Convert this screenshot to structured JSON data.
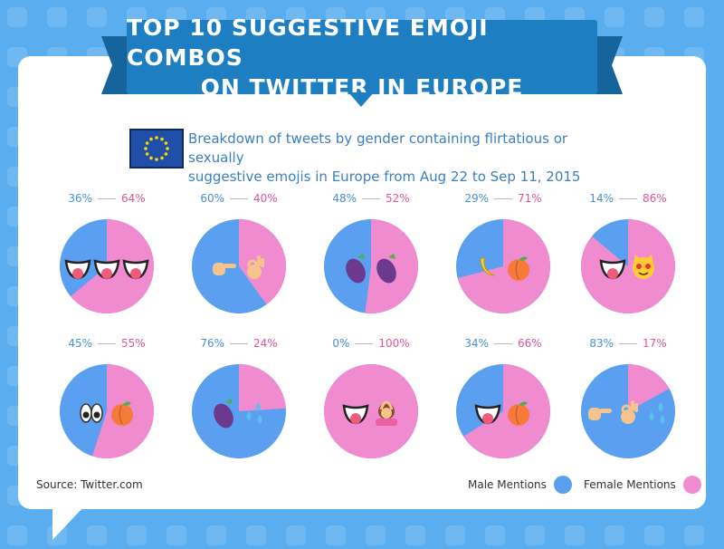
{
  "title": {
    "line1": "TOP 10 SUGGESTIVE EMOJI COMBOS",
    "line2": "ON TWITTER IN EUROPE"
  },
  "subtitle": {
    "line1": "Breakdown of tweets by gender containing flirtatious or sexually",
    "line2": "suggestive emojis in Europe from Aug 22 to Sep 11, 2015"
  },
  "source": "Source: Twitter.com",
  "colors": {
    "male": "#5a9ff0",
    "female": "#f08bd0",
    "background": "#5aaef0",
    "banner": "#1e7ec2"
  },
  "chart_data": {
    "type": "pie",
    "legend": [
      {
        "name": "Male Mentions",
        "color": "#5a9ff0"
      },
      {
        "name": "Female Mentions",
        "color": "#f08bd0"
      }
    ],
    "legend_placement": "bottom-right",
    "pies": [
      {
        "emojis": [
          "tongue-mouth",
          "tongue-mouth",
          "tongue-mouth"
        ],
        "male": 36,
        "female": 64,
        "male_label": "36%",
        "female_label": "64%"
      },
      {
        "emojis": [
          "pointing-hand",
          "ok-hand"
        ],
        "male": 60,
        "female": 40,
        "male_label": "60%",
        "female_label": "40%"
      },
      {
        "emojis": [
          "eggplant",
          "eggplant"
        ],
        "male": 48,
        "female": 52,
        "male_label": "48%",
        "female_label": "52%"
      },
      {
        "emojis": [
          "banana",
          "peach"
        ],
        "male": 29,
        "female": 71,
        "male_label": "29%",
        "female_label": "71%"
      },
      {
        "emojis": [
          "tongue-mouth",
          "heart-eyes-cat"
        ],
        "male": 14,
        "female": 86,
        "male_label": "14%",
        "female_label": "86%"
      },
      {
        "emojis": [
          "eyes",
          "peach"
        ],
        "male": 45,
        "female": 55,
        "male_label": "45%",
        "female_label": "55%"
      },
      {
        "emojis": [
          "eggplant",
          "sweat-droplets"
        ],
        "male": 76,
        "female": 24,
        "male_label": "76%",
        "female_label": "24%"
      },
      {
        "emojis": [
          "tongue-mouth",
          "woman-ok-gesture"
        ],
        "male": 0,
        "female": 100,
        "male_label": "0%",
        "female_label": "100%"
      },
      {
        "emojis": [
          "tongue-mouth",
          "peach"
        ],
        "male": 34,
        "female": 66,
        "male_label": "34%",
        "female_label": "66%"
      },
      {
        "emojis": [
          "pointing-hand",
          "ok-hand",
          "sweat-droplets"
        ],
        "male": 83,
        "female": 17,
        "male_label": "83%",
        "female_label": "17%"
      }
    ]
  }
}
